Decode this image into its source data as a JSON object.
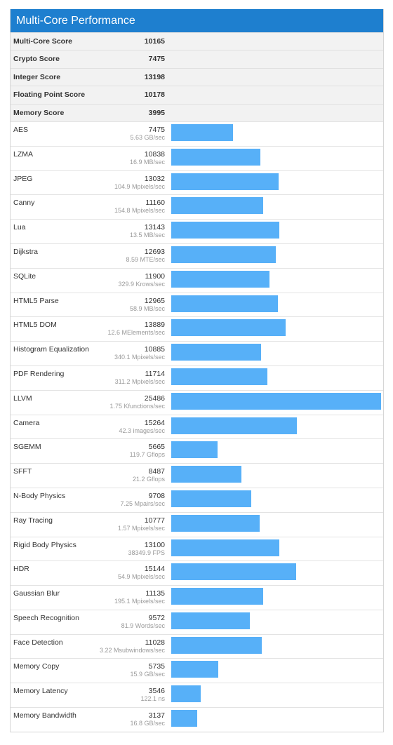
{
  "header": {
    "title": "Multi-Core Performance"
  },
  "colors": {
    "header_bg": "#1e7fcf",
    "bar": "#57b0f8",
    "summary_bg": "#f2f2f2"
  },
  "summary": [
    {
      "label": "Multi-Core Score",
      "value": "10165"
    },
    {
      "label": "Crypto Score",
      "value": "7475"
    },
    {
      "label": "Integer Score",
      "value": "13198"
    },
    {
      "label": "Floating Point Score",
      "value": "10178"
    },
    {
      "label": "Memory Score",
      "value": "3995"
    }
  ],
  "chart_data": {
    "type": "bar",
    "max_score": 25486,
    "workloads": [
      {
        "label": "AES",
        "score": 7475,
        "rate": "5.63 GB/sec"
      },
      {
        "label": "LZMA",
        "score": 10838,
        "rate": "16.9 MB/sec"
      },
      {
        "label": "JPEG",
        "score": 13032,
        "rate": "104.9 Mpixels/sec"
      },
      {
        "label": "Canny",
        "score": 11160,
        "rate": "154.8 Mpixels/sec"
      },
      {
        "label": "Lua",
        "score": 13143,
        "rate": "13.5 MB/sec"
      },
      {
        "label": "Dijkstra",
        "score": 12693,
        "rate": "8.59 MTE/sec"
      },
      {
        "label": "SQLite",
        "score": 11900,
        "rate": "329.9 Krows/sec"
      },
      {
        "label": "HTML5 Parse",
        "score": 12965,
        "rate": "58.9 MB/sec"
      },
      {
        "label": "HTML5 DOM",
        "score": 13889,
        "rate": "12.6 MElements/sec"
      },
      {
        "label": "Histogram Equalization",
        "score": 10885,
        "rate": "340.1 Mpixels/sec"
      },
      {
        "label": "PDF Rendering",
        "score": 11714,
        "rate": "311.2 Mpixels/sec"
      },
      {
        "label": "LLVM",
        "score": 25486,
        "rate": "1.75 Kfunctions/sec"
      },
      {
        "label": "Camera",
        "score": 15264,
        "rate": "42.3 images/sec"
      },
      {
        "label": "SGEMM",
        "score": 5665,
        "rate": "119.7 Gflops"
      },
      {
        "label": "SFFT",
        "score": 8487,
        "rate": "21.2 Gflops"
      },
      {
        "label": "N-Body Physics",
        "score": 9708,
        "rate": "7.25 Mpairs/sec"
      },
      {
        "label": "Ray Tracing",
        "score": 10777,
        "rate": "1.57 Mpixels/sec"
      },
      {
        "label": "Rigid Body Physics",
        "score": 13100,
        "rate": "38349.9 FPS"
      },
      {
        "label": "HDR",
        "score": 15144,
        "rate": "54.9 Mpixels/sec"
      },
      {
        "label": "Gaussian Blur",
        "score": 11135,
        "rate": "195.1 Mpixels/sec"
      },
      {
        "label": "Speech Recognition",
        "score": 9572,
        "rate": "81.9 Words/sec"
      },
      {
        "label": "Face Detection",
        "score": 11028,
        "rate": "3.22 Msubwindows/sec"
      },
      {
        "label": "Memory Copy",
        "score": 5735,
        "rate": "15.9 GB/sec"
      },
      {
        "label": "Memory Latency",
        "score": 3546,
        "rate": "122.1 ns"
      },
      {
        "label": "Memory Bandwidth",
        "score": 3137,
        "rate": "16.8 GB/sec"
      }
    ]
  }
}
